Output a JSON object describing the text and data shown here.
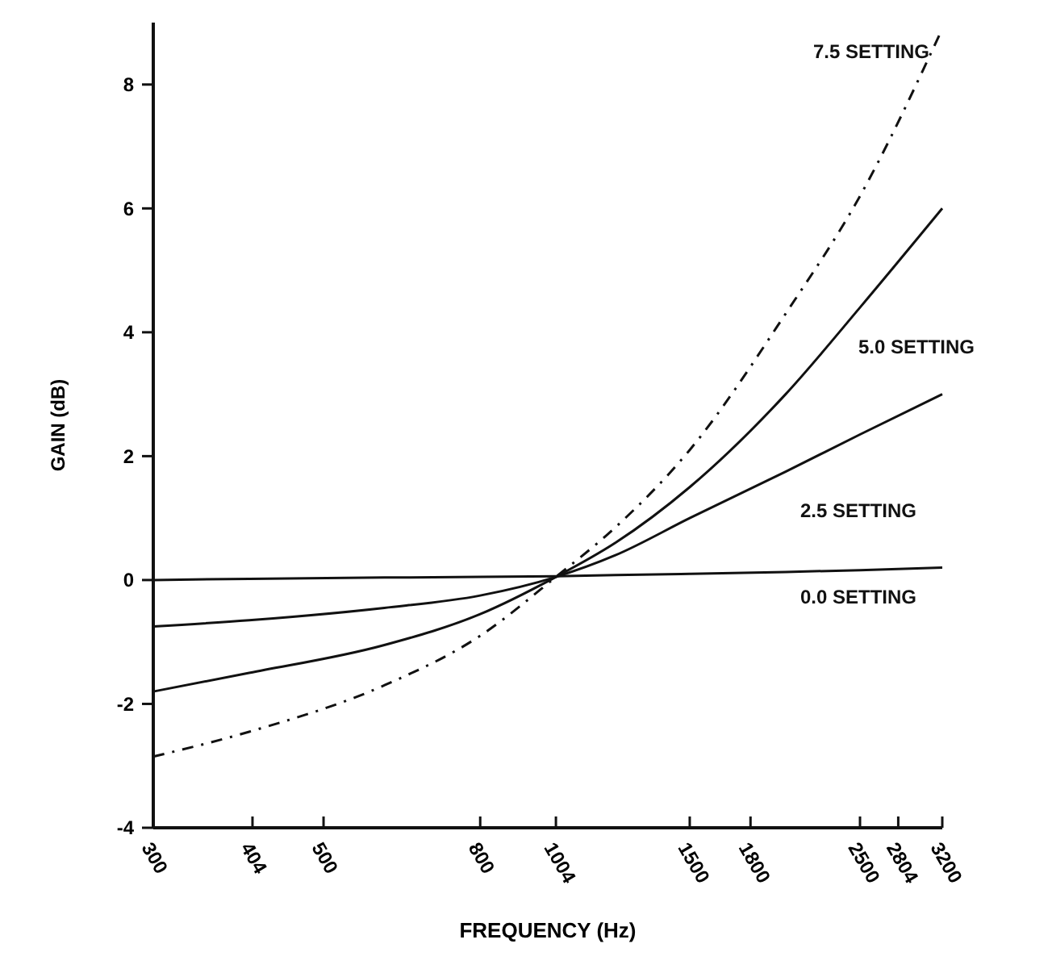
{
  "chart_data": {
    "type": "line",
    "xlabel": "FREQUENCY (Hz)",
    "ylabel": "GAIN (dB)",
    "log": "x",
    "xlim": [
      300,
      3200
    ],
    "ylim": [
      -4,
      9
    ],
    "xticks": [
      300,
      404,
      500,
      800,
      1004,
      1500,
      1800,
      2500,
      2804,
      3200
    ],
    "yticks": [
      {
        "value": -4,
        "label": "-4"
      },
      {
        "value": -2,
        "label": "-2"
      },
      0,
      2,
      4,
      6,
      8
    ],
    "x": [
      300,
      400,
      600,
      800,
      1004,
      1200,
      1500,
      2000,
      2500,
      3200
    ],
    "grid": false,
    "marker": "none",
    "series": [
      {
        "name": "7.5 SETTING",
        "color": "#111111",
        "line_style": "dashed",
        "values": [
          -2.85,
          -2.45,
          -1.7,
          -0.9,
          0.05,
          0.85,
          2.1,
          4.3,
          6.2,
          8.9
        ]
      },
      {
        "name": "5.0 SETTING",
        "color": "#111111",
        "line_style": "solid",
        "values": [
          -1.8,
          -1.5,
          -1.05,
          -0.55,
          0.05,
          0.6,
          1.5,
          3.0,
          4.4,
          6.0
        ]
      },
      {
        "name": "2.5 SETTING",
        "color": "#111111",
        "line_style": "solid",
        "values": [
          -0.75,
          -0.65,
          -0.45,
          -0.25,
          0.05,
          0.4,
          1.0,
          1.75,
          2.35,
          3.0
        ]
      },
      {
        "name": "0.0 SETTING",
        "color": "#111111",
        "line_style": "solid",
        "values": [
          0,
          0.02,
          0.04,
          0.05,
          0.06,
          0.08,
          0.1,
          0.13,
          0.16,
          0.2
        ]
      }
    ]
  }
}
